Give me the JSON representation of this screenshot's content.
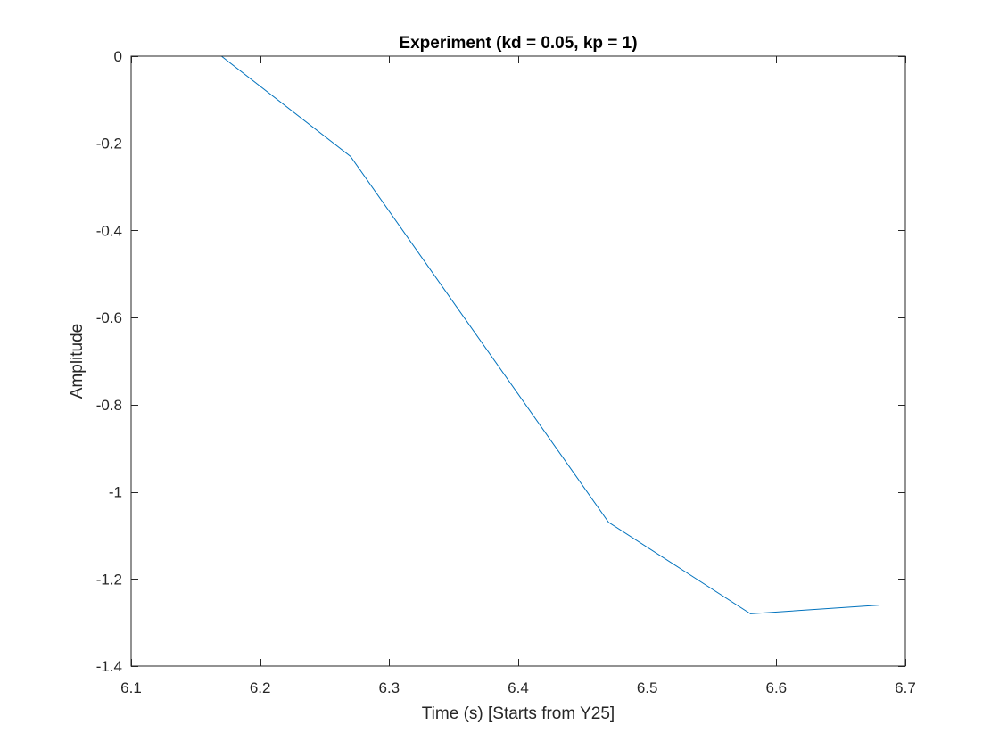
{
  "chart_data": {
    "type": "line",
    "title": "Experiment (kd = 0.05, kp = 1)",
    "xlabel": "Time (s) [Starts from Y25]",
    "ylabel": "Amplitude",
    "xlim": [
      6.1,
      6.7
    ],
    "ylim": [
      -1.4,
      0
    ],
    "xticks": [
      6.1,
      6.2,
      6.3,
      6.4,
      6.5,
      6.6,
      6.7
    ],
    "xtick_labels": [
      "6.1",
      "6.2",
      "6.3",
      "6.4",
      "6.5",
      "6.6",
      "6.7"
    ],
    "yticks": [
      0,
      -0.2,
      -0.4,
      -0.6,
      -0.8,
      -1,
      -1.2,
      -1.4
    ],
    "ytick_labels": [
      "0",
      "-0.2",
      "-0.4",
      "-0.6",
      "-0.8",
      "-1",
      "-1.2",
      "-1.4"
    ],
    "grid": false,
    "box": true,
    "series": [
      {
        "name": "Amplitude",
        "color": "#0072BD",
        "x": [
          6.17,
          6.27,
          6.47,
          6.58,
          6.68
        ],
        "y": [
          0.0,
          -0.23,
          -1.07,
          -1.28,
          -1.26
        ]
      }
    ]
  }
}
